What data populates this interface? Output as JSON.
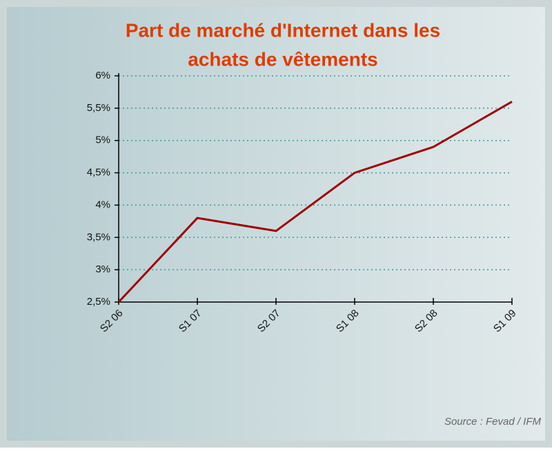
{
  "chart_data": {
    "type": "line",
    "title": [
      "Part de marché d'Internet dans les",
      "achats de vêtements"
    ],
    "categories": [
      "S2 06",
      "S1 07",
      "S2 07",
      "S1 08",
      "S2 08",
      "S1 09"
    ],
    "values": [
      2.5,
      3.8,
      3.6,
      4.5,
      4.9,
      5.6
    ],
    "color": "#a00000",
    "ylim": [
      2.5,
      6
    ],
    "yticks": [
      {
        "value": 2.5,
        "label": "2,5%"
      },
      {
        "value": 3,
        "label": "3%"
      },
      {
        "value": 3.5,
        "label": "3,5%"
      },
      {
        "value": 4,
        "label": "4%"
      },
      {
        "value": 4.5,
        "label": "4,5%"
      },
      {
        "value": 5,
        "label": "5%"
      },
      {
        "value": 5.5,
        "label": "5,5%"
      },
      {
        "value": 6,
        "label": "6%"
      }
    ],
    "grid": true,
    "source": "Source : Fevad / IFM"
  }
}
